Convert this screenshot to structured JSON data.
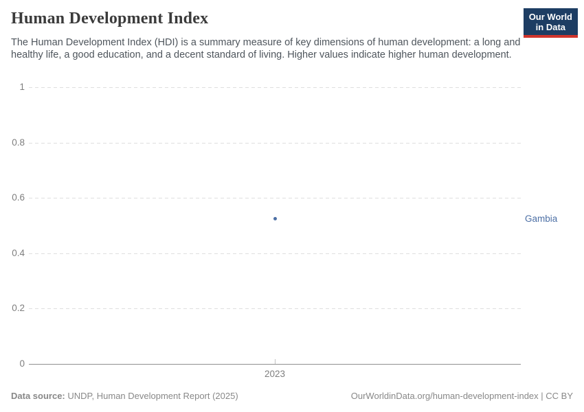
{
  "header": {
    "title": "Human Development Index",
    "subtitle": "The Human Development Index (HDI) is a summary measure of key dimensions of human development: a long and healthy life, a good education, and a decent standard of living. Higher values indicate higher human development.",
    "logo_line1": "Our World",
    "logo_line2": "in Data"
  },
  "chart_data": {
    "type": "scatter",
    "title": "Human Development Index",
    "x": [
      2023
    ],
    "series": [
      {
        "name": "Gambia",
        "values": [
          0.524
        ],
        "color": "#4c6fa5"
      }
    ],
    "xlabel": "",
    "ylabel": "",
    "ylim": [
      0,
      1
    ],
    "yticks": [
      1,
      0.8,
      0.6,
      0.4,
      0.2,
      0
    ],
    "xticks": [
      2023
    ],
    "grid": "horizontal dashed gridlines, solid zero axis line",
    "legend_position": "entity label right of plot at point height"
  },
  "footer": {
    "source_label": "Data source:",
    "source_text": " UNDP, Human Development Report (2025)",
    "link_text": "OurWorldinData.org/human-development-index | CC BY"
  },
  "colors": {
    "logo_background": "#1d3d63",
    "logo_stripe": "#d0352c",
    "entity": "#4c6fa5",
    "gridline": "#dedede",
    "axis_line": "#8f8f8f",
    "tick_text": "#7e7e7e",
    "title_text": "#3b3b3b",
    "subtitle_text": "#4e555c",
    "footer_text": "#888888"
  }
}
